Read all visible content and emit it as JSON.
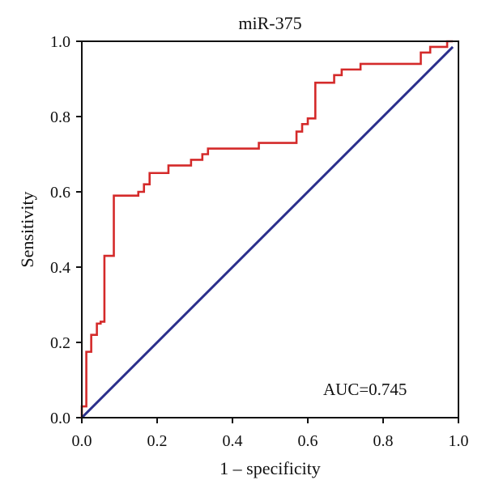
{
  "chart_data": {
    "type": "line",
    "title": "miR-375",
    "xlabel": "1 – specificity",
    "ylabel": "Sensitivity",
    "xlim": [
      0,
      1
    ],
    "ylim": [
      0,
      1
    ],
    "x_ticks": [
      "0.0",
      "0.2",
      "0.4",
      "0.6",
      "0.8",
      "1.0"
    ],
    "y_ticks": [
      "0.0",
      "0.2",
      "0.4",
      "0.6",
      "0.8",
      "1.0"
    ],
    "annotation": "AUC=0.745",
    "grid": false,
    "series": [
      {
        "color": "#d42a2a",
        "x": [
          0.0,
          0.0,
          0.012,
          0.012,
          0.025,
          0.025,
          0.04,
          0.04,
          0.05,
          0.05,
          0.06,
          0.06,
          0.07,
          0.07,
          0.085,
          0.085,
          0.15,
          0.15,
          0.165,
          0.165,
          0.18,
          0.18,
          0.23,
          0.23,
          0.29,
          0.29,
          0.32,
          0.32,
          0.335,
          0.335,
          0.35,
          0.35,
          0.47,
          0.47,
          0.57,
          0.57,
          0.585,
          0.585,
          0.6,
          0.6,
          0.62,
          0.62,
          0.67,
          0.67,
          0.69,
          0.69,
          0.74,
          0.74,
          0.9,
          0.9,
          0.925,
          0.925,
          0.95,
          0.95,
          0.97,
          0.97,
          0.985
        ],
        "y": [
          0.0,
          0.03,
          0.03,
          0.175,
          0.175,
          0.22,
          0.22,
          0.25,
          0.25,
          0.255,
          0.255,
          0.43,
          0.43,
          0.43,
          0.43,
          0.59,
          0.59,
          0.6,
          0.6,
          0.62,
          0.62,
          0.65,
          0.65,
          0.67,
          0.67,
          0.685,
          0.685,
          0.7,
          0.7,
          0.715,
          0.715,
          0.715,
          0.715,
          0.73,
          0.73,
          0.76,
          0.76,
          0.78,
          0.78,
          0.795,
          0.795,
          0.89,
          0.89,
          0.91,
          0.91,
          0.925,
          0.925,
          0.94,
          0.94,
          0.97,
          0.97,
          0.985,
          0.985,
          0.985,
          0.985,
          1.0,
          1.0
        ]
      },
      {
        "color": "#2b2f8c",
        "x": [
          0.0,
          0.985
        ],
        "y": [
          0.0,
          0.985
        ]
      }
    ]
  }
}
